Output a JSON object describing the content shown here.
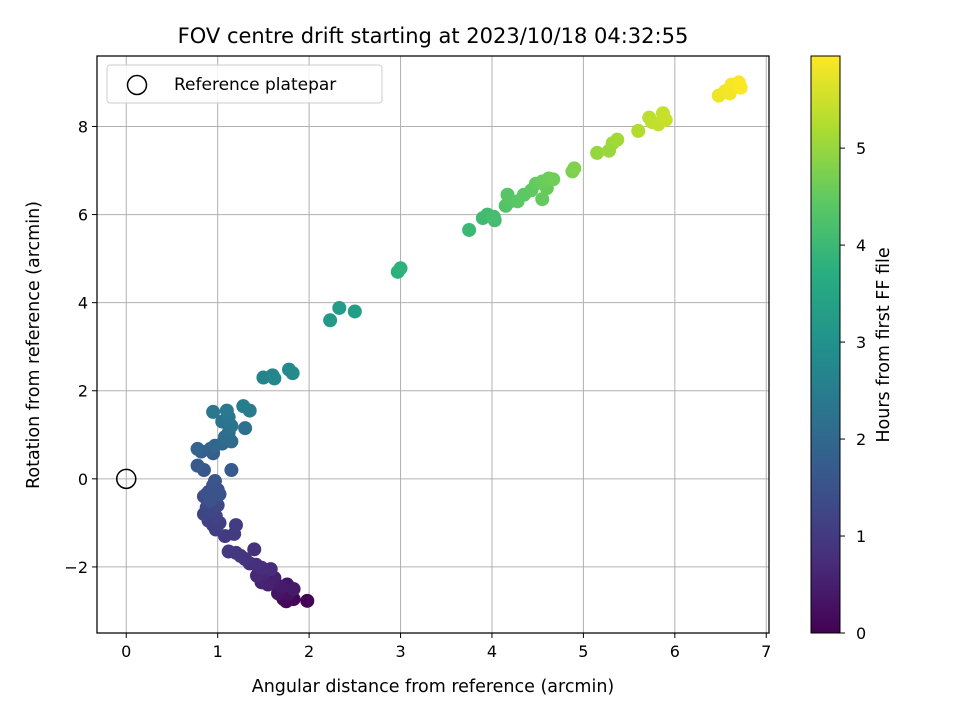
{
  "chart_data": {
    "type": "scatter",
    "title": "FOV centre drift starting at 2023/10/18 04:32:55",
    "xlabel": "Angular distance from reference (arcmin)",
    "ylabel": "Rotation from reference (arcmin)",
    "xlim": [
      -0.32,
      7.03
    ],
    "ylim": [
      -3.5,
      9.6
    ],
    "xticks": [
      0,
      1,
      2,
      3,
      4,
      5,
      6,
      7
    ],
    "yticks": [
      -2,
      0,
      2,
      4,
      6,
      8
    ],
    "xtick_labels": [
      "0",
      "1",
      "2",
      "3",
      "4",
      "5",
      "6",
      "7"
    ],
    "ytick_labels": [
      "−2",
      "0",
      "2",
      "4",
      "6",
      "8"
    ],
    "grid": true,
    "legend": {
      "placement": "top-left",
      "entries": [
        "Reference platepar"
      ]
    },
    "reference_point": {
      "x": 0,
      "y": 0
    },
    "colorbar": {
      "label": "Hours from first FF file",
      "colormap": "viridis",
      "range": [
        0,
        5.95
      ],
      "ticks": [
        0,
        1,
        2,
        3,
        4,
        5
      ],
      "tick_labels": [
        "0",
        "1",
        "2",
        "3",
        "4",
        "5"
      ]
    },
    "series": [
      {
        "points": [
          [
            1.98,
            -2.77,
            0.02
          ],
          [
            1.83,
            -2.73,
            0.08
          ],
          [
            1.75,
            -2.78,
            0.12
          ],
          [
            1.72,
            -2.73,
            0.15
          ],
          [
            1.68,
            -2.62,
            0.2
          ],
          [
            1.72,
            -2.5,
            0.25
          ],
          [
            1.78,
            -2.6,
            0.28
          ],
          [
            1.66,
            -2.6,
            0.32
          ],
          [
            1.76,
            -2.4,
            0.36
          ],
          [
            1.83,
            -2.5,
            0.4
          ],
          [
            1.7,
            -2.45,
            0.44
          ],
          [
            1.6,
            -2.35,
            0.48
          ],
          [
            1.62,
            -2.25,
            0.52
          ],
          [
            1.55,
            -2.4,
            0.55
          ],
          [
            1.48,
            -2.35,
            0.6
          ],
          [
            1.5,
            -2.15,
            0.64
          ],
          [
            1.43,
            -2.2,
            0.68
          ],
          [
            1.58,
            -2.05,
            0.72
          ],
          [
            1.48,
            -2.02,
            0.75
          ],
          [
            1.42,
            -1.95,
            0.78
          ],
          [
            1.35,
            -1.92,
            0.82
          ],
          [
            1.4,
            -1.6,
            0.85
          ],
          [
            1.3,
            -1.82,
            0.88
          ],
          [
            1.25,
            -1.75,
            0.9
          ],
          [
            1.2,
            -1.68,
            0.93
          ],
          [
            1.12,
            -1.65,
            0.96
          ],
          [
            1.18,
            -1.25,
            1.0
          ],
          [
            1.08,
            -1.3,
            1.02
          ],
          [
            1.2,
            -1.05,
            1.05
          ],
          [
            0.98,
            -1.15,
            1.08
          ],
          [
            0.95,
            -1.05,
            1.1
          ],
          [
            1.02,
            -1.0,
            1.12
          ],
          [
            0.9,
            -0.95,
            1.15
          ],
          [
            0.98,
            -0.85,
            1.18
          ],
          [
            0.85,
            -0.8,
            1.2
          ],
          [
            0.95,
            -0.75,
            1.23
          ],
          [
            0.88,
            -0.65,
            1.25
          ],
          [
            1.0,
            -0.6,
            1.28
          ],
          [
            0.9,
            -0.55,
            1.3
          ],
          [
            0.98,
            -0.45,
            1.33
          ],
          [
            0.85,
            -0.4,
            1.35
          ],
          [
            0.9,
            -0.3,
            1.38
          ],
          [
            1.0,
            -0.25,
            1.4
          ],
          [
            0.95,
            -0.15,
            1.42
          ],
          [
            0.88,
            -0.35,
            1.45
          ],
          [
            0.92,
            -0.5,
            1.48
          ],
          [
            1.02,
            -0.35,
            1.5
          ],
          [
            0.95,
            -0.2,
            1.52
          ],
          [
            0.97,
            -0.05,
            1.55
          ],
          [
            0.85,
            0.2,
            1.6
          ],
          [
            0.78,
            0.3,
            1.65
          ],
          [
            1.15,
            0.2,
            1.7
          ],
          [
            0.95,
            0.58,
            1.75
          ],
          [
            0.82,
            0.62,
            1.8
          ],
          [
            0.92,
            0.68,
            1.85
          ],
          [
            0.78,
            0.68,
            1.9
          ],
          [
            0.97,
            0.75,
            1.95
          ],
          [
            1.05,
            0.8,
            2.0
          ],
          [
            1.15,
            0.85,
            2.05
          ],
          [
            1.08,
            0.95,
            2.1
          ],
          [
            1.12,
            1.05,
            2.15
          ],
          [
            1.3,
            1.15,
            2.2
          ],
          [
            1.15,
            1.2,
            2.25
          ],
          [
            1.05,
            1.3,
            2.28
          ],
          [
            1.12,
            1.4,
            2.32
          ],
          [
            0.95,
            1.52,
            2.36
          ],
          [
            1.1,
            1.55,
            2.4
          ],
          [
            1.35,
            1.55,
            2.45
          ],
          [
            1.28,
            1.65,
            2.5
          ],
          [
            1.5,
            2.3,
            2.62
          ],
          [
            1.6,
            2.35,
            2.66
          ],
          [
            1.62,
            2.28,
            2.7
          ],
          [
            1.78,
            2.48,
            2.76
          ],
          [
            1.82,
            2.4,
            2.8
          ],
          [
            2.23,
            3.6,
            3.2
          ],
          [
            2.33,
            3.88,
            3.25
          ],
          [
            2.5,
            3.8,
            3.3
          ],
          [
            2.97,
            4.7,
            3.75
          ],
          [
            3.0,
            4.78,
            3.8
          ],
          [
            3.75,
            5.65,
            4.0
          ],
          [
            3.9,
            5.92,
            4.05
          ],
          [
            3.95,
            6.0,
            4.08
          ],
          [
            4.03,
            5.87,
            4.12
          ],
          [
            4.02,
            5.95,
            4.15
          ],
          [
            4.15,
            6.2,
            4.3
          ],
          [
            4.2,
            6.3,
            4.33
          ],
          [
            4.17,
            6.45,
            4.36
          ],
          [
            4.28,
            6.3,
            4.4
          ],
          [
            4.35,
            6.45,
            4.43
          ],
          [
            4.43,
            6.55,
            4.46
          ],
          [
            4.48,
            6.7,
            4.5
          ],
          [
            4.55,
            6.35,
            4.52
          ],
          [
            4.6,
            6.6,
            4.55
          ],
          [
            4.55,
            6.75,
            4.58
          ],
          [
            4.62,
            6.82,
            4.6
          ],
          [
            4.67,
            6.8,
            4.63
          ],
          [
            4.88,
            6.98,
            4.75
          ],
          [
            4.9,
            7.05,
            4.78
          ],
          [
            5.15,
            7.4,
            4.98
          ],
          [
            5.28,
            7.45,
            5.02
          ],
          [
            5.32,
            7.62,
            5.06
          ],
          [
            5.37,
            7.7,
            5.1
          ],
          [
            5.6,
            7.9,
            5.25
          ],
          [
            5.72,
            8.2,
            5.35
          ],
          [
            5.75,
            8.1,
            5.38
          ],
          [
            5.82,
            8.05,
            5.4
          ],
          [
            5.87,
            8.3,
            5.43
          ],
          [
            5.9,
            8.15,
            5.46
          ],
          [
            6.48,
            8.7,
            5.8
          ],
          [
            6.55,
            8.8,
            5.83
          ],
          [
            6.6,
            8.75,
            5.86
          ],
          [
            6.62,
            8.95,
            5.88
          ],
          [
            6.7,
            9.0,
            5.91
          ],
          [
            6.72,
            8.88,
            5.94
          ]
        ]
      }
    ]
  }
}
